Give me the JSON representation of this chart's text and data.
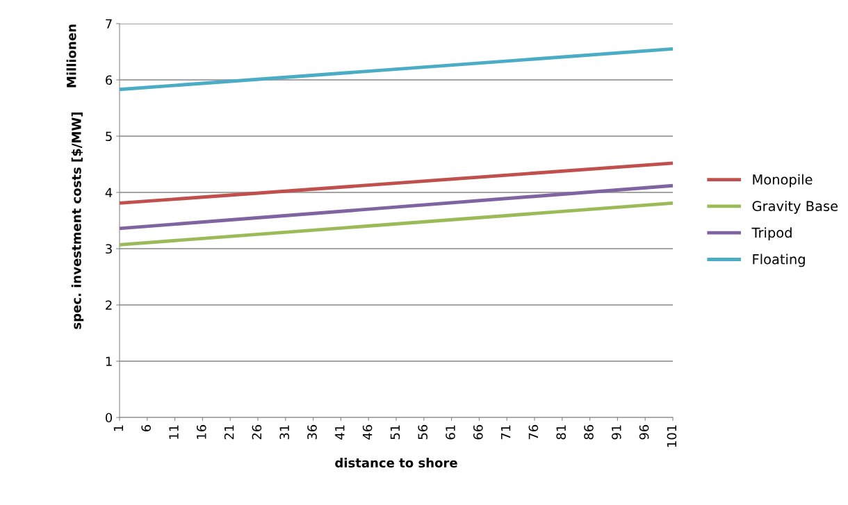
{
  "chart_data": {
    "type": "line",
    "xlabel": "distance to shore",
    "ylabel": "spec. investment costs [$/MW]",
    "annotations": [
      "Millionen"
    ],
    "x": [
      1,
      101
    ],
    "xlim": [
      1,
      101
    ],
    "xticks": [
      1,
      6,
      11,
      16,
      21,
      26,
      31,
      36,
      41,
      46,
      51,
      56,
      61,
      66,
      71,
      76,
      81,
      86,
      91,
      96,
      101
    ],
    "ylim": [
      0,
      7
    ],
    "yticks": [
      0,
      1,
      2,
      3,
      4,
      5,
      6,
      7
    ],
    "grid": "y",
    "legend": "right",
    "marker": "none",
    "line_style": "solid",
    "series": [
      {
        "name": "Monopile",
        "color": "#c0504d",
        "values": [
          3.81,
          4.52
        ]
      },
      {
        "name": "Gravity Base",
        "color": "#9bbb59",
        "values": [
          3.07,
          3.81
        ]
      },
      {
        "name": "Tripod",
        "color": "#8064a2",
        "values": [
          3.36,
          4.12
        ]
      },
      {
        "name": "Floating",
        "color": "#4bacc6",
        "values": [
          5.83,
          6.55
        ]
      }
    ]
  }
}
